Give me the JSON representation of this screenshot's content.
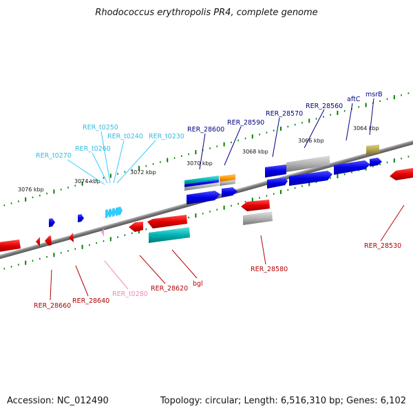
{
  "title": "Rhodococcus erythropolis PR4, complete genome",
  "footer": {
    "accession": "Accession: NC_012490",
    "topology": "Topology: circular; Length: 6,516,310 bp; Genes: 6,102"
  },
  "colors": {
    "backbone": "#808080",
    "forward_gene": "#0000e6",
    "reverse_gene": "#e60000",
    "trna": "#33ccff",
    "trna_reverse": "#ff99cc",
    "rrna": "#00b3b3",
    "pseudo": "#b3b3b3",
    "other": "#ff9900",
    "misc": "#b3a64d",
    "tick": "#008000",
    "label_forward": "#000080",
    "label_reverse": "#b30000",
    "label_trna": "#33bbdd",
    "label_trna_reverse": "#ee88bb"
  },
  "scale_labels": [
    "3076 kbp",
    "3074 kbp",
    "3072 kbp",
    "3070 kbp",
    "3068 kbp",
    "3066 kbp",
    "3064 kbp"
  ],
  "genes_top": [
    {
      "label": "RER_t0270",
      "type": "trna"
    },
    {
      "label": "RER_t0260",
      "type": "trna"
    },
    {
      "label": "RER_t0250",
      "type": "trna"
    },
    {
      "label": "RER_t0240",
      "type": "trna"
    },
    {
      "label": "RER_t0230",
      "type": "trna"
    },
    {
      "label": "RER_28600",
      "type": "forward"
    },
    {
      "label": "RER_28590",
      "type": "forward"
    },
    {
      "label": "RER_28570",
      "type": "forward"
    },
    {
      "label": "RER_28560",
      "type": "forward"
    },
    {
      "label": "aftC",
      "type": "forward"
    },
    {
      "label": "msrB",
      "type": "forward"
    }
  ],
  "genes_bottom": [
    {
      "label": "RER_28660",
      "type": "reverse"
    },
    {
      "label": "RER_28640",
      "type": "reverse"
    },
    {
      "label": "RER_t0280",
      "type": "trna_reverse"
    },
    {
      "label": "RER_28620",
      "type": "reverse"
    },
    {
      "label": "bgl",
      "type": "reverse"
    },
    {
      "label": "RER_28580",
      "type": "reverse"
    },
    {
      "label": "RER_28530",
      "type": "reverse"
    }
  ]
}
